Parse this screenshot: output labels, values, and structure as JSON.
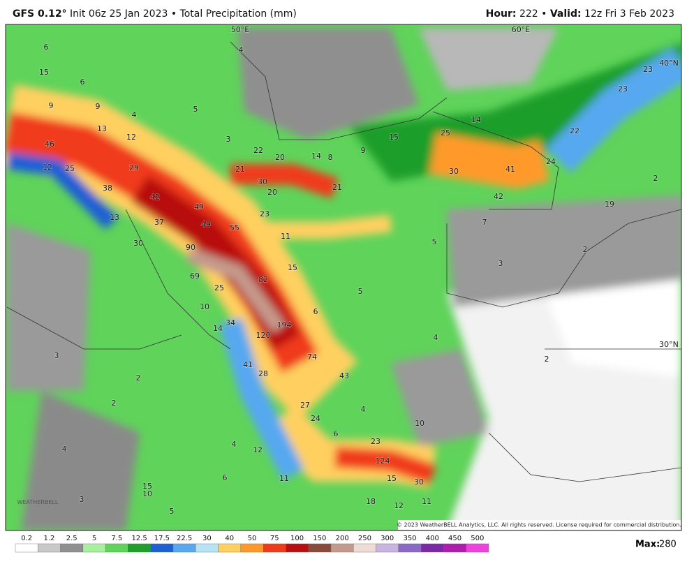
{
  "header": {
    "model": "GFS 0.12°",
    "init": "Init 06z 25 Jan 2023",
    "separator": "•",
    "product": "Total Precipitation (mm)",
    "hour_label": "Hour:",
    "hour": 222,
    "valid_label": "Valid:",
    "valid": "12z Fri 3 Feb 2023"
  },
  "map": {
    "graticule_labels": [
      "50°E",
      "60°E",
      "40°N",
      "30°N"
    ],
    "labels": [
      6,
      4,
      15,
      6,
      9,
      9,
      4,
      5,
      13,
      12,
      46,
      12,
      25,
      29,
      38,
      42,
      13,
      37,
      30,
      49,
      49,
      55,
      90,
      69,
      25,
      82,
      10,
      14,
      34,
      120,
      194,
      74,
      41,
      28,
      43,
      27,
      4,
      24,
      6,
      23,
      124,
      12,
      4,
      6,
      11,
      15,
      10,
      3,
      5,
      18,
      12,
      11,
      30,
      15,
      4,
      2,
      3,
      2,
      3,
      22,
      20,
      14,
      8,
      9,
      21,
      30,
      20,
      21,
      23,
      11,
      15,
      5,
      6,
      15,
      25,
      14,
      30,
      41,
      42,
      7,
      5,
      3,
      24,
      22,
      23,
      23,
      2,
      19,
      2,
      4,
      2,
      10
    ],
    "copyright": "© 2023 WeatherBELL Analytics, LLC. All rights reserved. License required for commercial distribution.",
    "watermark": "WEATHERBELL"
  },
  "colorbar": {
    "levels": [
      0.2,
      1.2,
      2.5,
      5,
      7.5,
      12.5,
      17.5,
      22.5,
      30,
      40,
      50,
      75,
      100,
      150,
      200,
      250,
      300,
      350,
      400,
      450,
      500
    ],
    "colors": [
      "#ffffff",
      "#c9c9c9",
      "#8f8f8f",
      "#a8f0a0",
      "#5fd35a",
      "#1f9e2c",
      "#1f5fd6",
      "#57a8f0",
      "#b6e4f5",
      "#ffd060",
      "#ff9a2a",
      "#f03a1a",
      "#b81010",
      "#8a4a3c",
      "#c49a8c",
      "#f0dcd6",
      "#c8b4e0",
      "#8a6ac8",
      "#7a28a8",
      "#b01cb0",
      "#f040e0"
    ]
  },
  "max_label": "Max:",
  "max": 280
}
